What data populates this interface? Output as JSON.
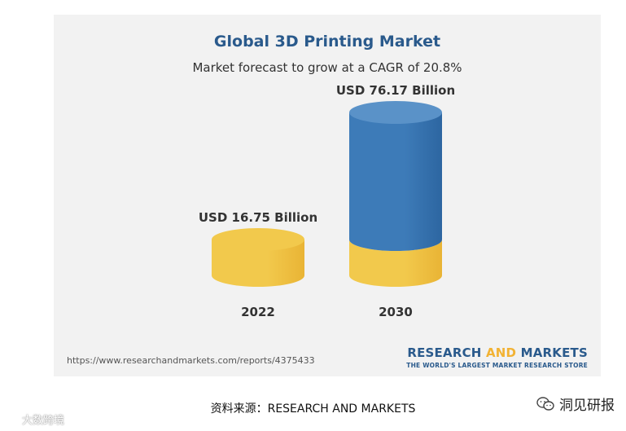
{
  "chart_data": {
    "type": "bar",
    "title": "Global 3D Printing Market",
    "subtitle": "Market forecast to grow at a CAGR of 20.8%",
    "categories": [
      "2022",
      "2030"
    ],
    "values": [
      16.75,
      76.17
    ],
    "data_labels": [
      "USD 16.75 Billion",
      "USD 76.17 Billion"
    ],
    "colors": {
      "base": "#f2c94c",
      "base_dark": "#e9b435",
      "growth": "#3d7bb8",
      "growth_dark": "#2d66a1",
      "growth_top": "#5a92c8"
    }
  },
  "footer": {
    "url": "https://www.researchandmarkets.com/reports/4375433",
    "brand_part1": "RESEARCH ",
    "brand_part2": "AND",
    "brand_part3": " MARKETS",
    "brand_tagline": "THE WORLD'S LARGEST MARKET RESEARCH STORE"
  },
  "caption": "资料来源：RESEARCH AND MARKETS",
  "account": {
    "name": "洞见研报",
    "icon": "wechat-icon"
  },
  "watermark": {
    "text": "大数跨境",
    "icon": "logo-icon"
  }
}
